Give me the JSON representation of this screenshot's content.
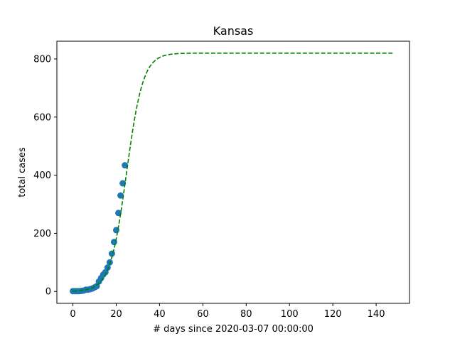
{
  "chart_data": {
    "type": "scatter",
    "title": "Kansas",
    "xlabel": "# days since 2020-03-07 00:00:00",
    "ylabel": "total cases",
    "xlim": [
      -7.4,
      155.4
    ],
    "ylim": [
      -41,
      861
    ],
    "xticks": [
      0,
      20,
      40,
      60,
      80,
      100,
      120,
      140
    ],
    "yticks": [
      0,
      200,
      400,
      600,
      800
    ],
    "grid": false,
    "series": [
      {
        "kind": "scatter",
        "marker": "circle",
        "color": "#1f77b4",
        "x": [
          0,
          1,
          2,
          3,
          4,
          5,
          6,
          7,
          8,
          9,
          10,
          11,
          12,
          13,
          14,
          15,
          16,
          17,
          18,
          19,
          20,
          21,
          22,
          23,
          24
        ],
        "y": [
          1,
          1,
          1,
          1,
          2,
          3,
          6,
          6,
          8,
          10,
          14,
          18,
          34,
          46,
          58,
          66,
          82,
          100,
          130,
          170,
          211,
          270,
          330,
          372,
          434
        ]
      },
      {
        "kind": "line",
        "style": "dashed",
        "color": "#008000",
        "model": "logistic",
        "K": 820,
        "r": 0.262,
        "x0": 24.8,
        "x_range": [
          0,
          148
        ]
      }
    ]
  }
}
